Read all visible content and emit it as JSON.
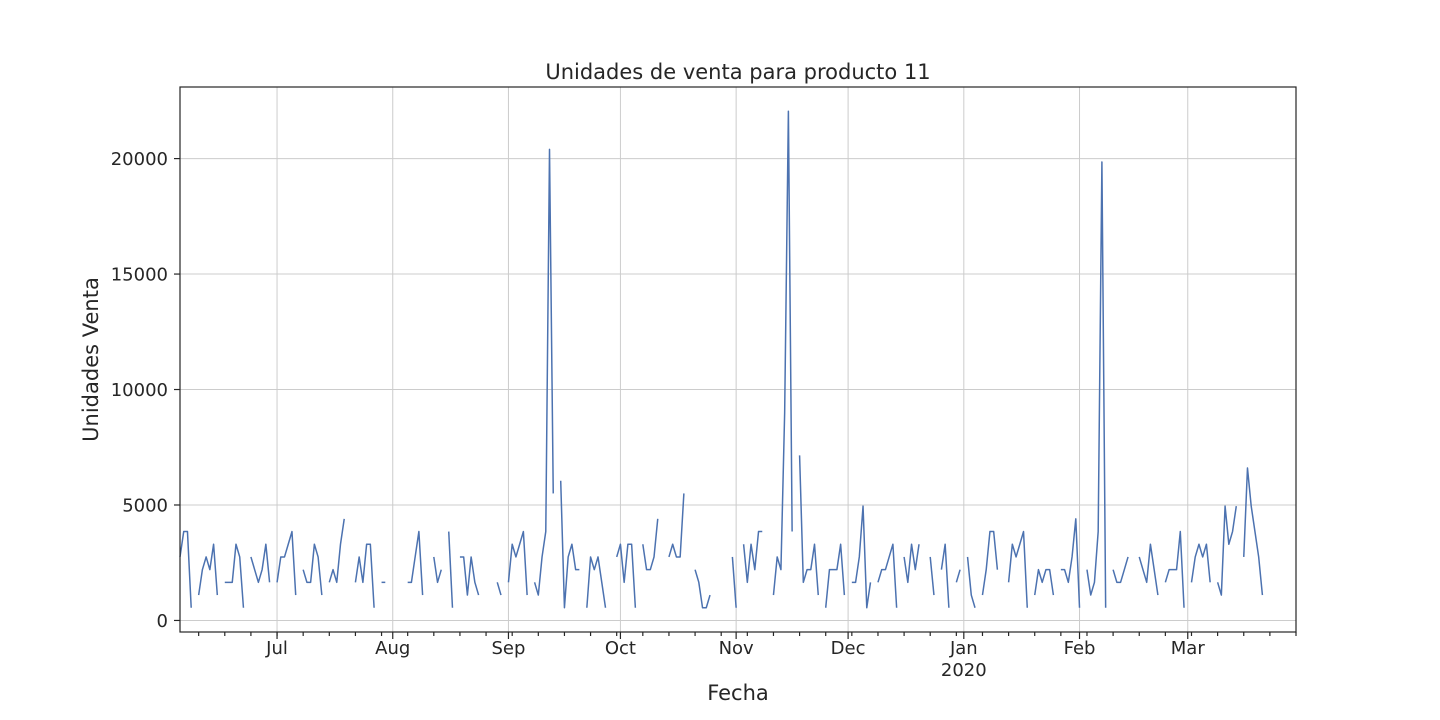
{
  "chart_data": {
    "type": "line",
    "title": "Unidades de venta para producto 11",
    "xlabel": "Fecha",
    "ylabel": "Unidades Venta",
    "xlim": [
      "2019-06-05",
      "2020-03-30"
    ],
    "ylim": [
      -500,
      23100
    ],
    "grid": true,
    "y_ticks": [
      0,
      5000,
      10000,
      15000,
      20000
    ],
    "x_ticks": [
      {
        "date": "2019-07-01",
        "label": "Jul",
        "sublabel": ""
      },
      {
        "date": "2019-08-01",
        "label": "Aug",
        "sublabel": ""
      },
      {
        "date": "2019-09-01",
        "label": "Sep",
        "sublabel": ""
      },
      {
        "date": "2019-10-01",
        "label": "Oct",
        "sublabel": ""
      },
      {
        "date": "2019-11-01",
        "label": "Nov",
        "sublabel": ""
      },
      {
        "date": "2019-12-01",
        "label": "Dec",
        "sublabel": ""
      },
      {
        "date": "2020-01-01",
        "label": "Jan",
        "sublabel": "2020"
      },
      {
        "date": "2020-02-01",
        "label": "Feb",
        "sublabel": ""
      },
      {
        "date": "2020-03-01",
        "label": "Mar",
        "sublabel": ""
      }
    ],
    "segments": [
      {
        "start": "2019-06-05",
        "values": [
          2750,
          3850,
          3850,
          550
        ]
      },
      {
        "start": "2019-06-10",
        "values": [
          1100,
          2200,
          2750,
          2200,
          3300,
          1100
        ]
      },
      {
        "start": "2019-06-17",
        "values": [
          1650,
          1650,
          1650,
          3300,
          2750,
          550
        ]
      },
      {
        "start": "2019-06-24",
        "values": [
          2750,
          2200,
          1650,
          2200,
          3300,
          1650
        ]
      },
      {
        "start": "2019-07-01",
        "values": [
          1650,
          2750,
          2750,
          3300,
          3850,
          1100
        ]
      },
      {
        "start": "2019-07-08",
        "values": [
          2200,
          1650,
          1650,
          3300,
          2750,
          1100
        ]
      },
      {
        "start": "2019-07-15",
        "values": [
          1650,
          2200,
          1650,
          3300,
          4400
        ]
      },
      {
        "start": "2019-07-22",
        "values": [
          1650,
          2750,
          1650,
          3300,
          3300,
          550
        ]
      },
      {
        "start": "2019-07-29",
        "values": [
          1650,
          1650
        ]
      },
      {
        "start": "2019-08-05",
        "values": [
          1650,
          1650,
          2750,
          3850,
          1100
        ]
      },
      {
        "start": "2019-08-12",
        "values": [
          2750,
          1650,
          2200
        ]
      },
      {
        "start": "2019-08-16",
        "values": [
          3850,
          550
        ]
      },
      {
        "start": "2019-08-19",
        "values": [
          2750,
          2750,
          1100,
          2750,
          1650,
          1100
        ]
      },
      {
        "start": "2019-08-29",
        "values": [
          1650,
          1100
        ]
      },
      {
        "start": "2019-09-01",
        "values": [
          1650,
          3300,
          2750,
          3300,
          3850,
          1100
        ]
      },
      {
        "start": "2019-09-08",
        "values": [
          1650,
          1100,
          2750,
          3850,
          20400,
          5500
        ]
      },
      {
        "start": "2019-09-15",
        "values": [
          6050,
          550,
          2750,
          3300,
          2200,
          2200
        ]
      },
      {
        "start": "2019-09-22",
        "values": [
          550,
          2750,
          2200,
          2750,
          1650,
          550
        ]
      },
      {
        "start": "2019-09-30",
        "values": [
          2750,
          3300,
          1650,
          3300,
          3300,
          550
        ]
      },
      {
        "start": "2019-10-07",
        "values": [
          3300,
          2200,
          2200,
          2750,
          4400
        ]
      },
      {
        "start": "2019-10-14",
        "values": [
          2750,
          3300,
          2750,
          2750,
          5500
        ]
      },
      {
        "start": "2019-10-21",
        "values": [
          2200,
          1650,
          550,
          550,
          1100
        ]
      },
      {
        "start": "2019-10-31",
        "values": [
          2750,
          550
        ]
      },
      {
        "start": "2019-11-03",
        "values": [
          3300,
          1650,
          3300,
          2200,
          3850,
          3850
        ]
      },
      {
        "start": "2019-11-11",
        "values": [
          1100,
          2750,
          2200,
          9000,
          22050,
          3850
        ]
      },
      {
        "start": "2019-11-18",
        "values": [
          7150,
          1650,
          2200,
          2200,
          3300,
          1100
        ]
      },
      {
        "start": "2019-11-25",
        "values": [
          550,
          2200,
          2200,
          2200,
          3300,
          1100
        ]
      },
      {
        "start": "2019-12-02",
        "values": [
          1650,
          1650,
          2750,
          4950,
          550,
          1650
        ]
      },
      {
        "start": "2019-12-09",
        "values": [
          1650,
          2200,
          2200,
          2750,
          3300,
          550
        ]
      },
      {
        "start": "2019-12-16",
        "values": [
          2750,
          1650,
          3300,
          2200,
          3300
        ]
      },
      {
        "start": "2019-12-23",
        "values": [
          2750,
          1100
        ]
      },
      {
        "start": "2019-12-26",
        "values": [
          2200,
          3300,
          550
        ]
      },
      {
        "start": "2019-12-30",
        "values": [
          1650,
          2200
        ]
      },
      {
        "start": "2020-01-02",
        "values": [
          2750,
          1100,
          550
        ]
      },
      {
        "start": "2020-01-06",
        "values": [
          1100,
          2200,
          3850,
          3850,
          2200
        ]
      },
      {
        "start": "2020-01-13",
        "values": [
          1650,
          3300,
          2750,
          3300,
          3850,
          550
        ]
      },
      {
        "start": "2020-01-20",
        "values": [
          1100,
          2200,
          1650,
          2200,
          2200,
          1100
        ]
      },
      {
        "start": "2020-01-27",
        "values": [
          2200,
          2200,
          1650,
          2750,
          4400,
          550
        ]
      },
      {
        "start": "2020-02-03",
        "values": [
          2200,
          1100,
          1650,
          3850,
          19850,
          550
        ]
      },
      {
        "start": "2020-02-10",
        "values": [
          2200,
          1650,
          1650,
          2200,
          2750
        ]
      },
      {
        "start": "2020-02-17",
        "values": [
          2750,
          2200,
          1650,
          3300,
          2200,
          1100
        ]
      },
      {
        "start": "2020-02-24",
        "values": [
          1650,
          2200,
          2200,
          2200,
          3850,
          550
        ]
      },
      {
        "start": "2020-03-02",
        "values": [
          1650,
          2750,
          3300,
          2750,
          3300,
          1650
        ]
      },
      {
        "start": "2020-03-09",
        "values": [
          1650,
          1100,
          4950,
          3300,
          3850,
          4950
        ]
      },
      {
        "start": "2020-03-16",
        "values": [
          2750,
          6600,
          4950,
          3850,
          2750,
          1100
        ]
      }
    ]
  }
}
